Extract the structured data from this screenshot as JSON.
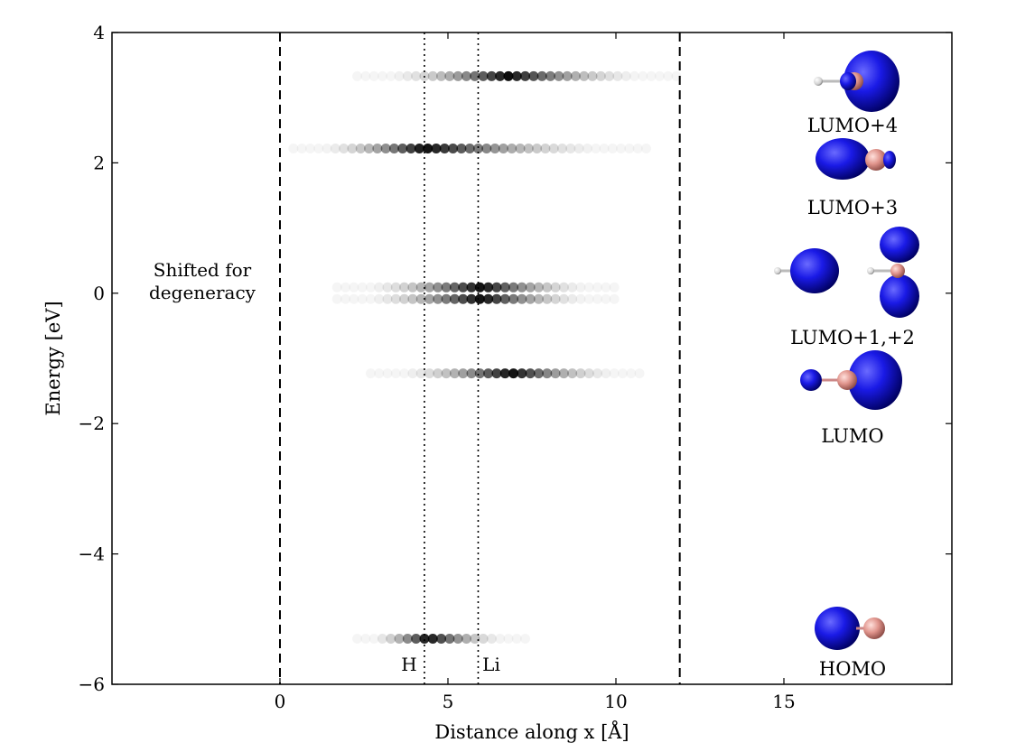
{
  "chart_data": {
    "type": "scatter",
    "title": "",
    "xlabel": "Distance along x [Å]",
    "ylabel": "Energy [eV]",
    "xlim": [
      -5,
      20
    ],
    "ylim": [
      -6,
      4
    ],
    "xticks": [
      0,
      5,
      10,
      15
    ],
    "xtick_labels": [
      "0",
      "5",
      "10",
      "15"
    ],
    "yticks": [
      -6,
      -4,
      -2,
      0,
      2,
      4
    ],
    "ytick_labels": [
      "−6",
      "−4",
      "−2",
      "0",
      "2",
      "4"
    ],
    "grid": false,
    "vlines": [
      {
        "x": 0,
        "style": "dashed"
      },
      {
        "x": 11.9,
        "style": "dashed"
      },
      {
        "x": 4.3,
        "style": "dotted",
        "label": "H"
      },
      {
        "x": 5.9,
        "style": "dotted",
        "label": "Li"
      }
    ],
    "annotation": {
      "line1": "Shifted for",
      "line2": "degeneracy"
    },
    "levels": [
      {
        "name": "HOMO",
        "energy": -5.3,
        "peak_x": 4.4,
        "x_start": 2.3,
        "x_end": 7.3
      },
      {
        "name": "LUMO",
        "energy": -1.23,
        "peak_x": 6.9,
        "x_start": 2.7,
        "x_end": 10.8
      },
      {
        "name": "LUMO+1",
        "energy": -0.09,
        "peak_x": 6.0,
        "x_start": 1.7,
        "x_end": 10.0
      },
      {
        "name": "LUMO+2",
        "energy": 0.09,
        "peak_x": 6.0,
        "x_start": 1.7,
        "x_end": 10.0
      },
      {
        "name": "LUMO+3",
        "energy": 2.22,
        "peak_x": 4.3,
        "x_start": 0.4,
        "x_end": 11.0
      },
      {
        "name": "LUMO+4",
        "energy": 3.33,
        "peak_x": 6.8,
        "x_start": 2.3,
        "x_end": 11.8
      }
    ],
    "orbital_labels": [
      "LUMO+4",
      "LUMO+3",
      "LUMO+1,+2",
      "LUMO",
      "HOMO"
    ]
  }
}
